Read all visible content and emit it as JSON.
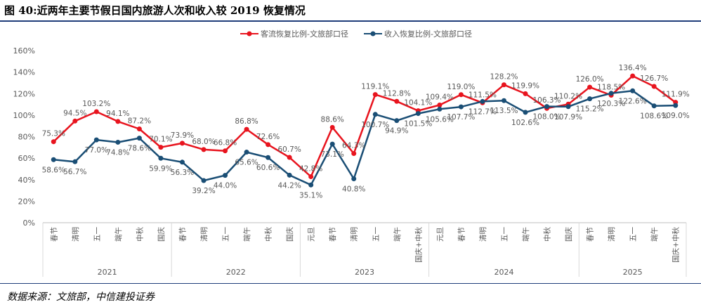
{
  "figure": {
    "title": "图 40:近两年主要节假日国内旅游人次和收入较 2019 恢复情况",
    "source": "数据来源：文旅部，中信建投证券"
  },
  "colors": {
    "series1": "#e8141e",
    "series2": "#1a4e75",
    "axis": "#bfbfbf",
    "text": "#595959",
    "divider": "#d9d9d9"
  },
  "chart_data": {
    "type": "line",
    "title": "",
    "ylabel": "",
    "ylim": [
      0,
      160
    ],
    "yticks": [
      "0%",
      "20%",
      "40%",
      "60%",
      "80%",
      "100%",
      "120%",
      "140%",
      "160%"
    ],
    "legend_position": "top-center",
    "categories": [
      "春节",
      "清明",
      "五一",
      "端午",
      "中秋",
      "国庆",
      "春节",
      "清明",
      "五一",
      "端午",
      "中秋",
      "国庆",
      "元旦",
      "春节",
      "清明",
      "五一",
      "端午",
      "国庆+中秋",
      "元旦",
      "春节",
      "清明",
      "五一",
      "端午",
      "中秋",
      "国庆",
      "春节",
      "清明",
      "五一",
      "端午",
      "国庆+中秋"
    ],
    "groups": [
      {
        "label": "2021",
        "count": 6
      },
      {
        "label": "2022",
        "count": 6
      },
      {
        "label": "2023",
        "count": 6
      },
      {
        "label": "2024",
        "count": 7
      },
      {
        "label": "2025",
        "count": 5
      }
    ],
    "series": [
      {
        "name": "客流恢复比例-文旅部口径",
        "values": [
          75.3,
          94.5,
          103.2,
          94.1,
          87.2,
          70.1,
          73.9,
          68.0,
          66.8,
          86.8,
          72.6,
          60.7,
          42.8,
          88.6,
          64.3,
          119.1,
          112.8,
          104.1,
          109.4,
          119.0,
          111.5,
          128.2,
          119.9,
          106.3,
          110.2,
          126.0,
          118.5,
          136.4,
          126.7,
          111.9
        ],
        "labels": [
          "75.3%",
          "94.5%",
          "103.2%",
          "94.1%",
          "87.2%",
          "70.1%",
          "73.9%",
          "68.0%",
          "66.8%",
          "86.8%",
          "72.6%",
          "60.7%",
          "42.8%",
          "88.6%",
          "64.3%",
          "119.1%",
          "112.8%",
          "104.1%",
          "109.4%",
          "119.0%",
          "111.5%",
          "128.2%",
          "119.9%",
          "106.3%",
          "110.2%",
          "126.0%",
          "118.5%",
          "136.4%",
          "126.7%",
          "111.9%"
        ]
      },
      {
        "name": "收入恢复比例-文旅部口径",
        "values": [
          58.6,
          56.7,
          77.0,
          74.8,
          78.6,
          59.9,
          56.3,
          39.2,
          44.0,
          65.6,
          60.6,
          44.2,
          35.1,
          73.1,
          40.8,
          100.7,
          94.9,
          101.5,
          105.6,
          107.7,
          112.7,
          113.5,
          102.6,
          108.0,
          107.9,
          115.2,
          120.3,
          122.6,
          108.6,
          109.0
        ],
        "labels": [
          "58.6%",
          "56.7%",
          "77.0%",
          "74.8%",
          "78.6%",
          "59.9%",
          "56.3%",
          "39.2%",
          "44.0%",
          "65.6%",
          "60.6%",
          "44.2%",
          "35.1%",
          "73.1%",
          "40.8%",
          "100.7%",
          "94.9%",
          "101.5%",
          "105.6%",
          "107.7%",
          "112.7%",
          "113.5%",
          "102.6%",
          "108.0%",
          "107.9%",
          "115.2%",
          "120.3%",
          "122.6%",
          "108.6%",
          "109.0%"
        ]
      }
    ]
  }
}
